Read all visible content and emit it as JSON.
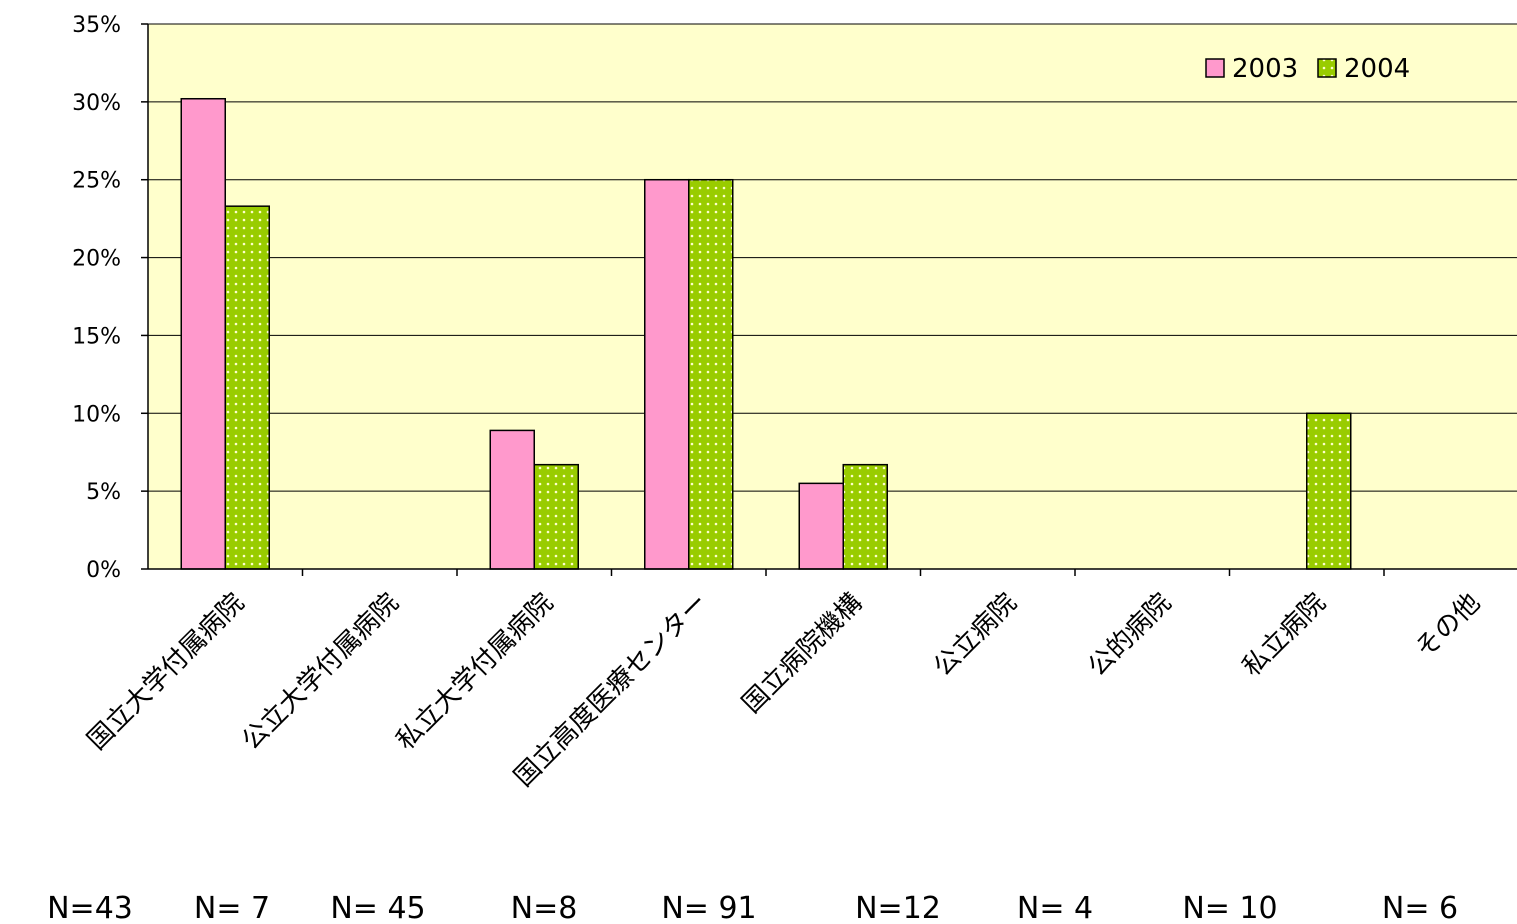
{
  "colors": {
    "plot_background": "#ffffcc",
    "series_2003": "#ff99cc",
    "series_2004": "#99cc00",
    "series_2004_dots": "#ffffcc"
  },
  "chart_data": {
    "type": "bar",
    "categories": [
      "国立大学付属病院",
      "公立大学付属病院",
      "私立大学付属病院",
      "国立高度医療センター",
      "国立病院機構",
      "公立病院",
      "公的病院",
      "私立病院",
      "その他"
    ],
    "series": [
      {
        "name": "2003",
        "values": [
          30.2,
          0,
          8.9,
          25.0,
          5.5,
          0,
          0,
          0,
          0
        ]
      },
      {
        "name": "2004",
        "values": [
          23.3,
          0,
          6.7,
          25.0,
          6.7,
          0,
          0,
          10.0,
          0
        ]
      }
    ],
    "y_tick_labels": [
      "0%",
      "5%",
      "10%",
      "15%",
      "20%",
      "25%",
      "30%",
      "35%"
    ],
    "ylim": [
      0,
      35
    ],
    "y_step": 5,
    "grid": true,
    "legend_position": "top-right",
    "sample_sizes": [
      "N=43",
      "N= 7",
      "N= 45",
      "N=8",
      "N= 91",
      "N=12",
      "N= 4",
      "N= 10",
      "N= 6"
    ]
  }
}
